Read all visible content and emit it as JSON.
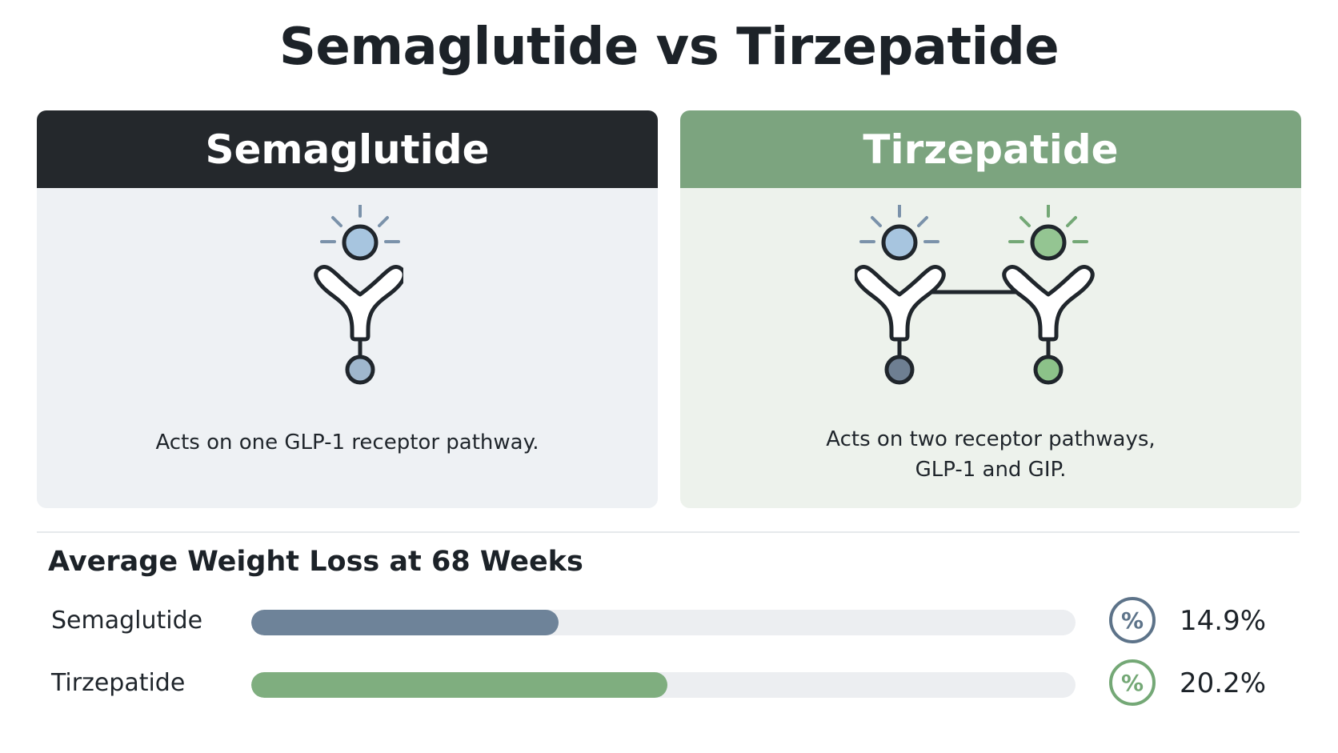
{
  "page": {
    "title": "Semaglutide vs  Tirzepatide"
  },
  "cards": [
    {
      "name": "Semaglutide",
      "description": "Acts on one GLP-1 receptor pathway.",
      "header_color": "#24282c",
      "icon": "single-receptor-icon"
    },
    {
      "name": "Tirzepatide",
      "description_line1": "Acts on two receptor pathways,",
      "description_line2": "GLP-1 and GIP.",
      "header_color": "#7ca47f",
      "icon": "dual-receptor-icon"
    }
  ],
  "chart_data": {
    "type": "bar",
    "orientation": "horizontal",
    "title": "Average Weight Loss at 68 Weeks",
    "categories": [
      "Semaglutide",
      "Tirzepatide"
    ],
    "values": [
      14.9,
      20.2
    ],
    "value_labels": [
      "14.9%",
      "20.2%"
    ],
    "unit": "%",
    "xlim": [
      0,
      40
    ],
    "colors": [
      "#6e8399",
      "#7fae7f"
    ],
    "icon_colors": [
      "#5d7389",
      "#74a876"
    ],
    "icon_symbol": "%",
    "grid": false,
    "legend": "none"
  }
}
